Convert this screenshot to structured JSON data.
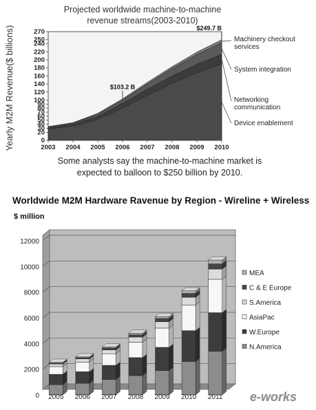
{
  "chart_data": [
    {
      "type": "area",
      "title": "Projected worldwide machine-to-machine revenue streams(2003-2010)",
      "ylabel": "Yearly M2M Revenue($ billions)",
      "caption": "Some analysts say the machine-to-machine market is expected to balloon to $250 billion by 2010.",
      "x": [
        "2003",
        "2004",
        "2005",
        "2006",
        "2007",
        "2008",
        "2009",
        "2010"
      ],
      "ylim": [
        0,
        270
      ],
      "yticks": [
        "0",
        "20",
        "30",
        "40",
        "50",
        "60",
        "70",
        "80",
        "90",
        "100",
        "120",
        "140",
        "160",
        "180",
        "200",
        "220",
        "240",
        "250",
        "270"
      ],
      "series": [
        {
          "name": "Device enablement",
          "values": [
            28,
            35,
            52,
            80,
            112,
            142,
            168,
            190
          ],
          "color": "#4a4a4a"
        },
        {
          "name": "Networking communication",
          "values": [
            3,
            5,
            8,
            12,
            15,
            18,
            21,
            24
          ],
          "color": "#3c3c3c"
        },
        {
          "name": "System integration",
          "values": [
            2,
            3,
            5,
            8,
            13,
            18,
            24,
            28
          ],
          "color": "#5a5a5a"
        },
        {
          "name": "Machinery checkout services",
          "values": [
            1,
            1,
            2,
            3,
            4,
            5,
            6,
            7.7
          ],
          "color": "#7a7a7a"
        }
      ],
      "annotations": [
        {
          "text": "$103.2 B",
          "x": "2006"
        },
        {
          "text": "$249.7 B",
          "x": "2010"
        }
      ],
      "legend": "right"
    },
    {
      "type": "bar",
      "stacked": true,
      "three_d": true,
      "title": "Worldwide M2M Hardware Ravenue by Region - Wireline + Wireless",
      "unit_label": "$ million",
      "categories": [
        "2005",
        "2006",
        "2007",
        "2008",
        "2009",
        "2010",
        "2011"
      ],
      "ylim": [
        0,
        12000
      ],
      "yticks": [
        "0",
        "2000",
        "4000",
        "6000",
        "8000",
        "10000",
        "12000"
      ],
      "series": [
        {
          "name": "N.America",
          "values": [
            800,
            900,
            1200,
            1500,
            1900,
            2600,
            3400
          ],
          "color": "#8c8c8c"
        },
        {
          "name": "W.Europe",
          "values": [
            800,
            900,
            1100,
            1400,
            1800,
            2400,
            3000
          ],
          "color": "#3d3d3d"
        },
        {
          "name": "AsiaPac",
          "values": [
            600,
            750,
            900,
            1200,
            1500,
            2000,
            2600
          ],
          "color": "#f7f7f7"
        },
        {
          "name": "S.America",
          "values": [
            200,
            250,
            300,
            400,
            500,
            600,
            800
          ],
          "color": "#dcdcdc"
        },
        {
          "name": "C & E Europe",
          "values": [
            80,
            100,
            150,
            180,
            250,
            300,
            400
          ],
          "color": "#454545"
        },
        {
          "name": "MEA",
          "values": [
            50,
            60,
            90,
            120,
            150,
            200,
            300
          ],
          "color": "#b0b0b0"
        }
      ],
      "legend": "right",
      "legend_order": [
        "MEA",
        "C & E Europe",
        "S.America",
        "AsiaPac",
        "W.Europe",
        "N.America"
      ],
      "grid": true
    }
  ],
  "watermark": {
    "text": "e-works"
  }
}
